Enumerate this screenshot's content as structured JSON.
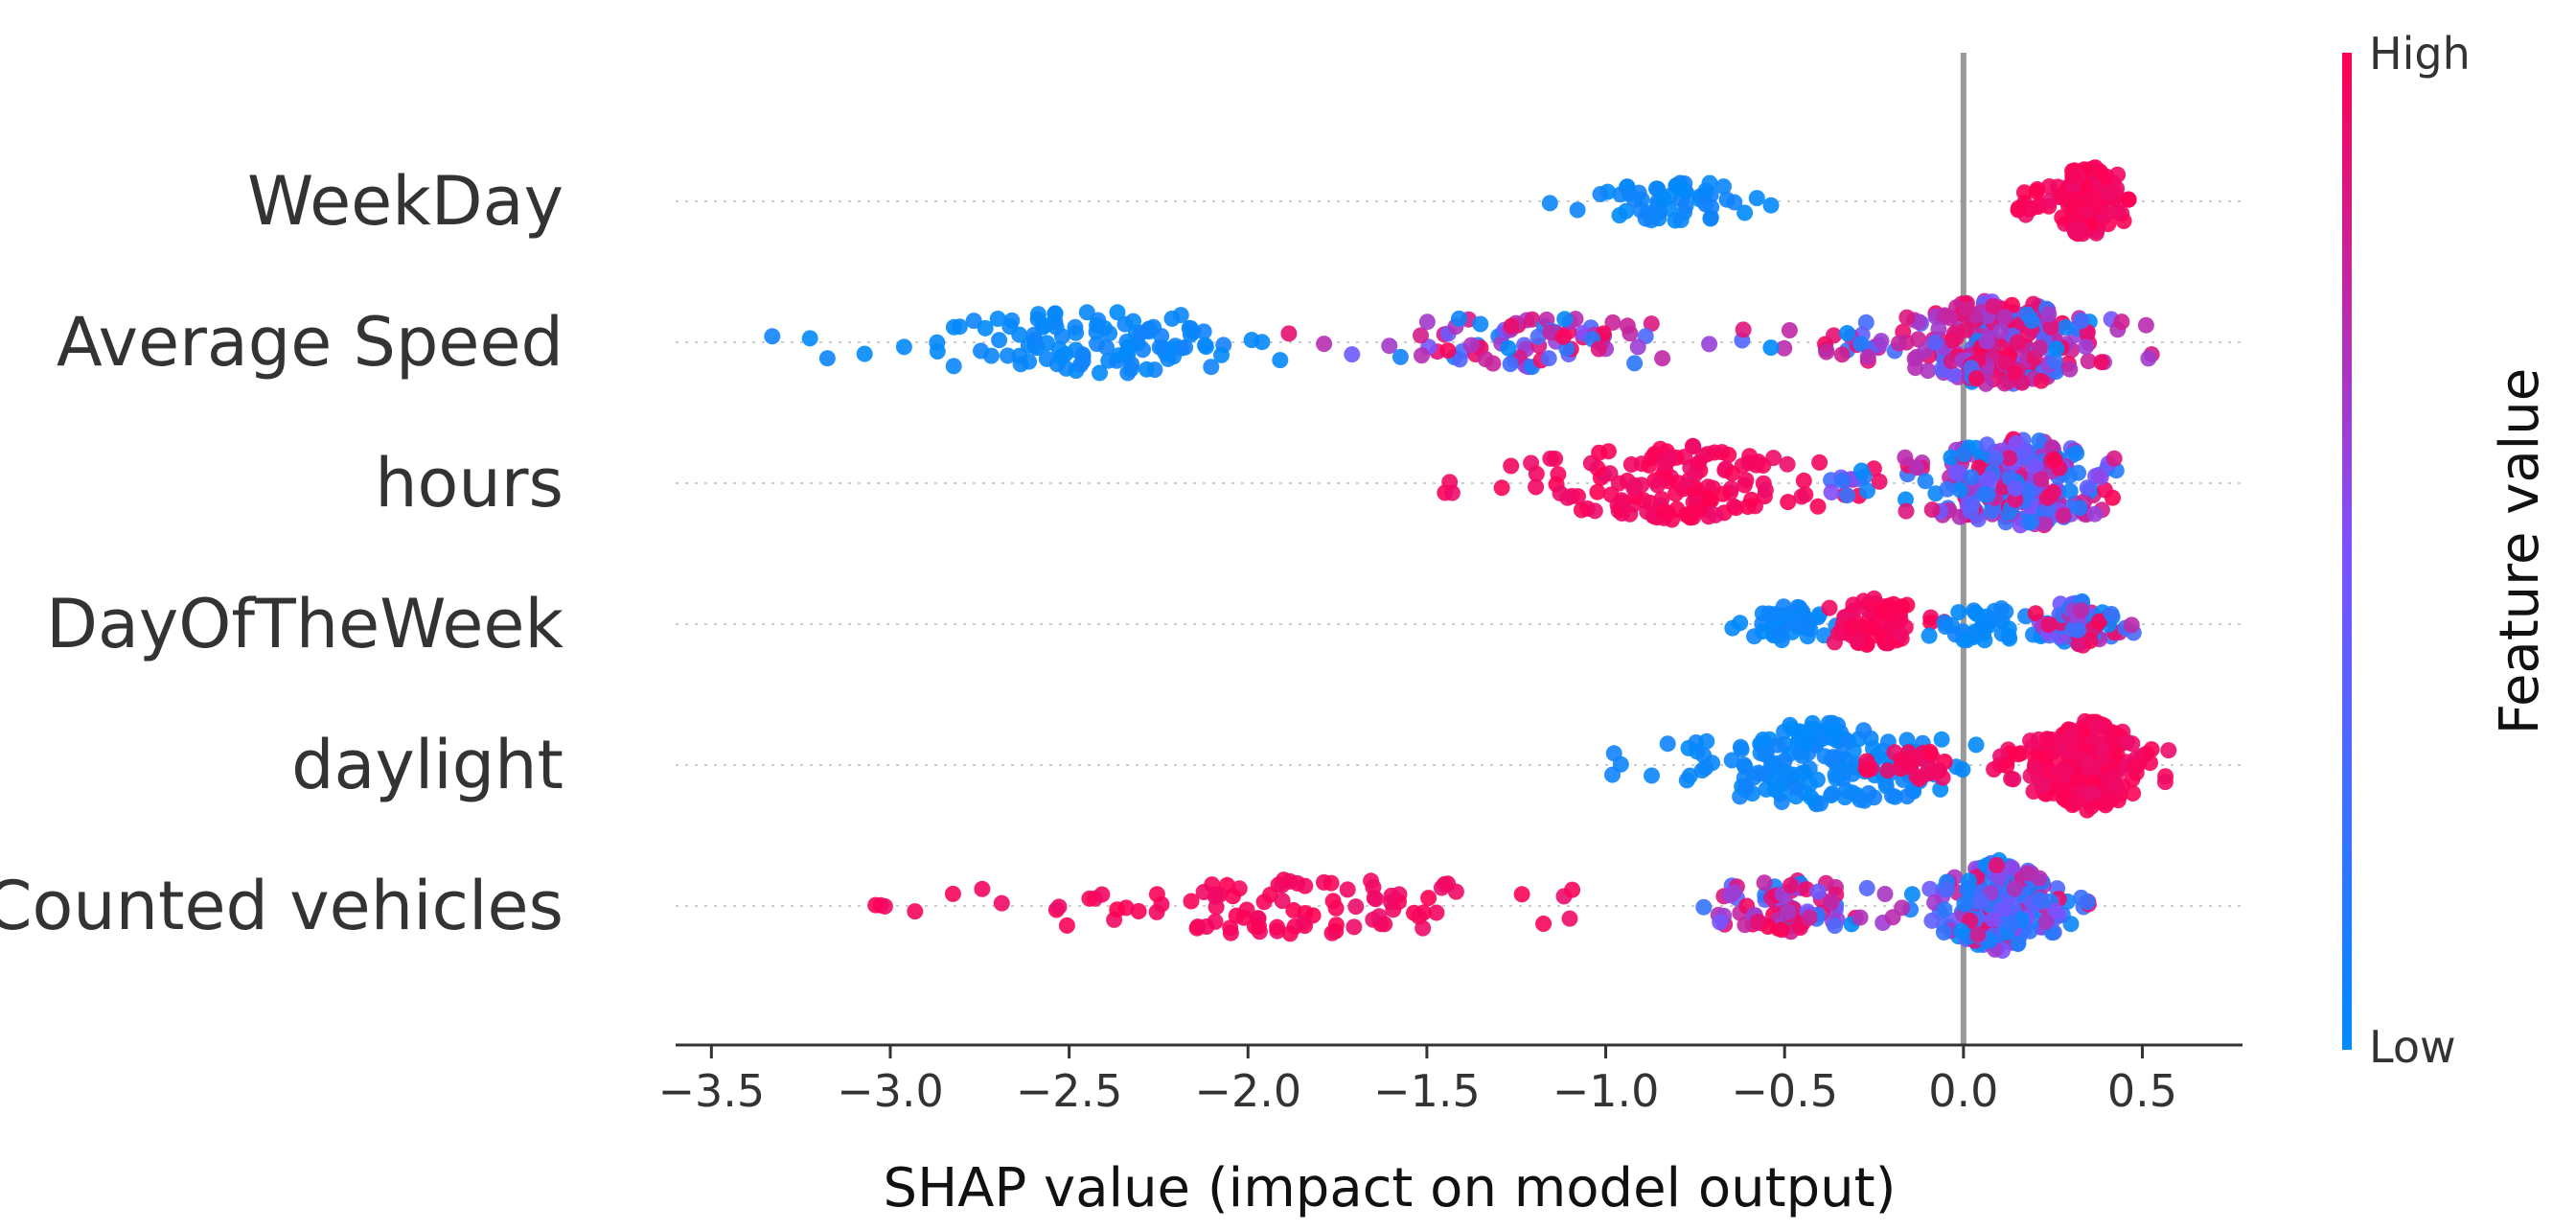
{
  "chart_data": {
    "type": "beeswarm",
    "title": "",
    "xlabel": "SHAP value (impact on model output)",
    "ylabel": "",
    "xlim": [
      -3.6,
      0.78
    ],
    "xticks": [
      -3.5,
      -3.0,
      -2.5,
      -2.0,
      -1.5,
      -1.0,
      -0.5,
      0.0,
      0.5
    ],
    "xtick_labels": [
      "−3.5",
      "−3.0",
      "−2.5",
      "−2.0",
      "−1.5",
      "−1.0",
      "−0.5",
      "0.0",
      "0.5"
    ],
    "zero_line": 0.0,
    "colorbar": {
      "title": "Feature value",
      "high_label": "High",
      "low_label": "Low",
      "high_color": "#ff0051",
      "mid_color": "#7c52ff",
      "low_color": "#008bfb"
    },
    "features": [
      {
        "name": "WeekDay",
        "clusters": [
          {
            "center": -0.8,
            "min": -1.3,
            "max": -0.5,
            "n": 55,
            "color": "low"
          },
          {
            "center": 0.35,
            "min": 0.15,
            "max": 0.48,
            "n": 130,
            "color": "high"
          }
        ]
      },
      {
        "name": "Average Speed",
        "clusters": [
          {
            "center": -2.4,
            "min": -3.4,
            "max": -1.9,
            "n": 110,
            "color": "low"
          },
          {
            "center": -1.2,
            "min": -1.9,
            "max": -0.4,
            "n": 90,
            "color": "mixed-high"
          },
          {
            "center": 0.1,
            "min": -0.4,
            "max": 0.55,
            "n": 260,
            "color": "mixed-high"
          }
        ]
      },
      {
        "name": "hours",
        "clusters": [
          {
            "center": -0.8,
            "min": -1.45,
            "max": -0.2,
            "n": 150,
            "color": "high"
          },
          {
            "center": 0.15,
            "min": -0.4,
            "max": 0.48,
            "n": 260,
            "color": "mixed"
          }
        ]
      },
      {
        "name": "DayOfTheWeek",
        "clusters": [
          {
            "center": -0.5,
            "min": -0.65,
            "max": -0.35,
            "n": 45,
            "color": "low"
          },
          {
            "center": -0.25,
            "min": -0.42,
            "max": -0.05,
            "n": 80,
            "color": "high"
          },
          {
            "center": 0.05,
            "min": -0.1,
            "max": 0.25,
            "n": 40,
            "color": "low"
          },
          {
            "center": 0.33,
            "min": 0.2,
            "max": 0.48,
            "n": 80,
            "color": "mixed"
          }
        ]
      },
      {
        "name": "daylight",
        "clusters": [
          {
            "center": -0.4,
            "min": -1.05,
            "max": 0.05,
            "n": 170,
            "color": "low"
          },
          {
            "center": 0.35,
            "min": 0.1,
            "max": 0.58,
            "n": 240,
            "color": "high"
          },
          {
            "center": -0.1,
            "min": -0.3,
            "max": 0.1,
            "n": 30,
            "color": "high"
          }
        ]
      },
      {
        "name": "Counted vehicles",
        "clusters": [
          {
            "center": -1.9,
            "min": -3.15,
            "max": -0.8,
            "n": 100,
            "color": "high"
          },
          {
            "center": -0.5,
            "min": -0.8,
            "max": -0.1,
            "n": 90,
            "color": "mixed-high"
          },
          {
            "center": 0.1,
            "min": -0.1,
            "max": 0.35,
            "n": 230,
            "color": "mixed-low"
          }
        ]
      }
    ]
  }
}
